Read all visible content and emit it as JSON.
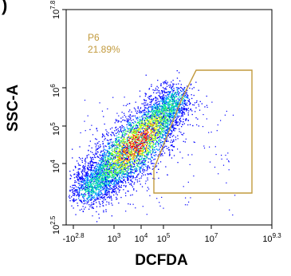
{
  "panel_letter": ")",
  "chart_data": {
    "type": "scatter",
    "subtype": "flow-cytometry-density",
    "xlabel": "DCFDA",
    "ylabel": "SSC-A",
    "x_ticks": [
      {
        "base": "-10",
        "exp": "2.8",
        "value": -630
      },
      {
        "base": "10",
        "exp": "3",
        "value": 1000
      },
      {
        "base": "10",
        "exp": "4",
        "value": 10000
      },
      {
        "base": "10",
        "exp": "5",
        "value": 100000
      },
      {
        "base": "10",
        "exp": "7",
        "value": 10000000
      },
      {
        "base": "10",
        "exp": "9.3",
        "value": 1995262315
      }
    ],
    "y_ticks": [
      {
        "base": "10",
        "exp": "2.5",
        "value": 316
      },
      {
        "base": "10",
        "exp": "4",
        "value": 10000
      },
      {
        "base": "10",
        "exp": "5",
        "value": 100000
      },
      {
        "base": "10",
        "exp": "6",
        "value": 1000000
      },
      {
        "base": "10",
        "exp": "7.8",
        "value": 63095734
      }
    ],
    "gate": {
      "name": "P6",
      "percent": "21.89%",
      "color": "#c29a3d"
    },
    "colormap": [
      "#0000ff",
      "#00a0ff",
      "#00e0a0",
      "#40ff40",
      "#c0ff00",
      "#ffff00",
      "#ff8000",
      "#ff0000"
    ]
  }
}
